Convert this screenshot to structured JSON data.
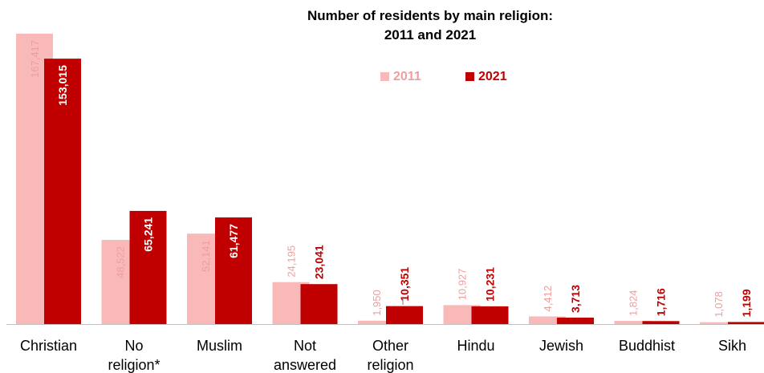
{
  "chart_data": {
    "type": "bar",
    "title_lines": [
      "Number of residents by main religion:",
      "2011 and 2021"
    ],
    "categories": [
      [
        "Christian"
      ],
      [
        "No",
        "religion*"
      ],
      [
        "Muslim"
      ],
      [
        "Not",
        "answered"
      ],
      [
        "Other",
        "religion"
      ],
      [
        "Hindu"
      ],
      [
        "Jewish"
      ],
      [
        "Buddhist"
      ],
      [
        "Sikh"
      ]
    ],
    "series": [
      {
        "name": "2011",
        "color": "#f9b9b9",
        "label_color": "#ef9e9e",
        "values": [
          167417,
          48522,
          52141,
          24195,
          1950,
          10927,
          4412,
          1824,
          1078
        ],
        "labels": [
          "167,417",
          "48,522",
          "52,141",
          "24,195",
          "1,950",
          "10,927",
          "4,412",
          "1,824",
          "1,078"
        ]
      },
      {
        "name": "2021",
        "color": "#c00000",
        "label_color": "#c00000",
        "values": [
          153015,
          65241,
          61477,
          23041,
          10351,
          10231,
          3713,
          1716,
          1199
        ],
        "labels": [
          "153,015",
          "65,241",
          "61,477",
          "23,041",
          "10,351",
          "10,231",
          "3,713",
          "1,716",
          "1,199"
        ]
      }
    ],
    "legend_position": "top-right",
    "axis_line_color": "#bfbfbf",
    "grid": false
  }
}
